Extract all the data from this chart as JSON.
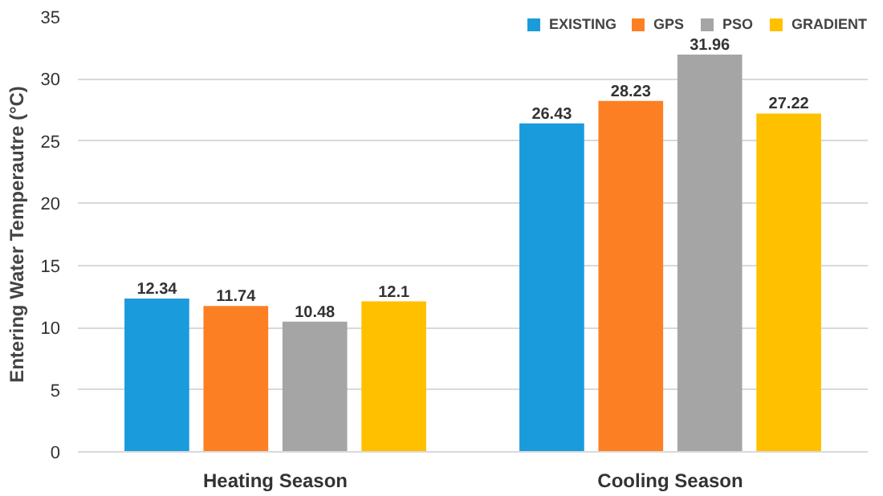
{
  "chart_data": {
    "type": "bar",
    "ylabel": "Entering Water Temperautre (°C)",
    "categories": [
      "Heating Season",
      "Cooling Season"
    ],
    "series": [
      {
        "name": "EXISTING",
        "color": "#1a9bdb",
        "values": [
          12.34,
          26.43
        ]
      },
      {
        "name": "GPS",
        "color": "#fd7f23",
        "values": [
          11.74,
          28.23
        ]
      },
      {
        "name": "PSO",
        "color": "#a5a5a5",
        "values": [
          10.48,
          31.96
        ]
      },
      {
        "name": "GRADIENT",
        "color": "#ffc000",
        "values": [
          12.1,
          27.22
        ]
      }
    ],
    "ylim": [
      0,
      35
    ],
    "yticks": [
      0,
      5,
      10,
      15,
      20,
      25,
      30,
      35
    ],
    "grid": "y",
    "legend": "top right",
    "data_labels": true
  }
}
